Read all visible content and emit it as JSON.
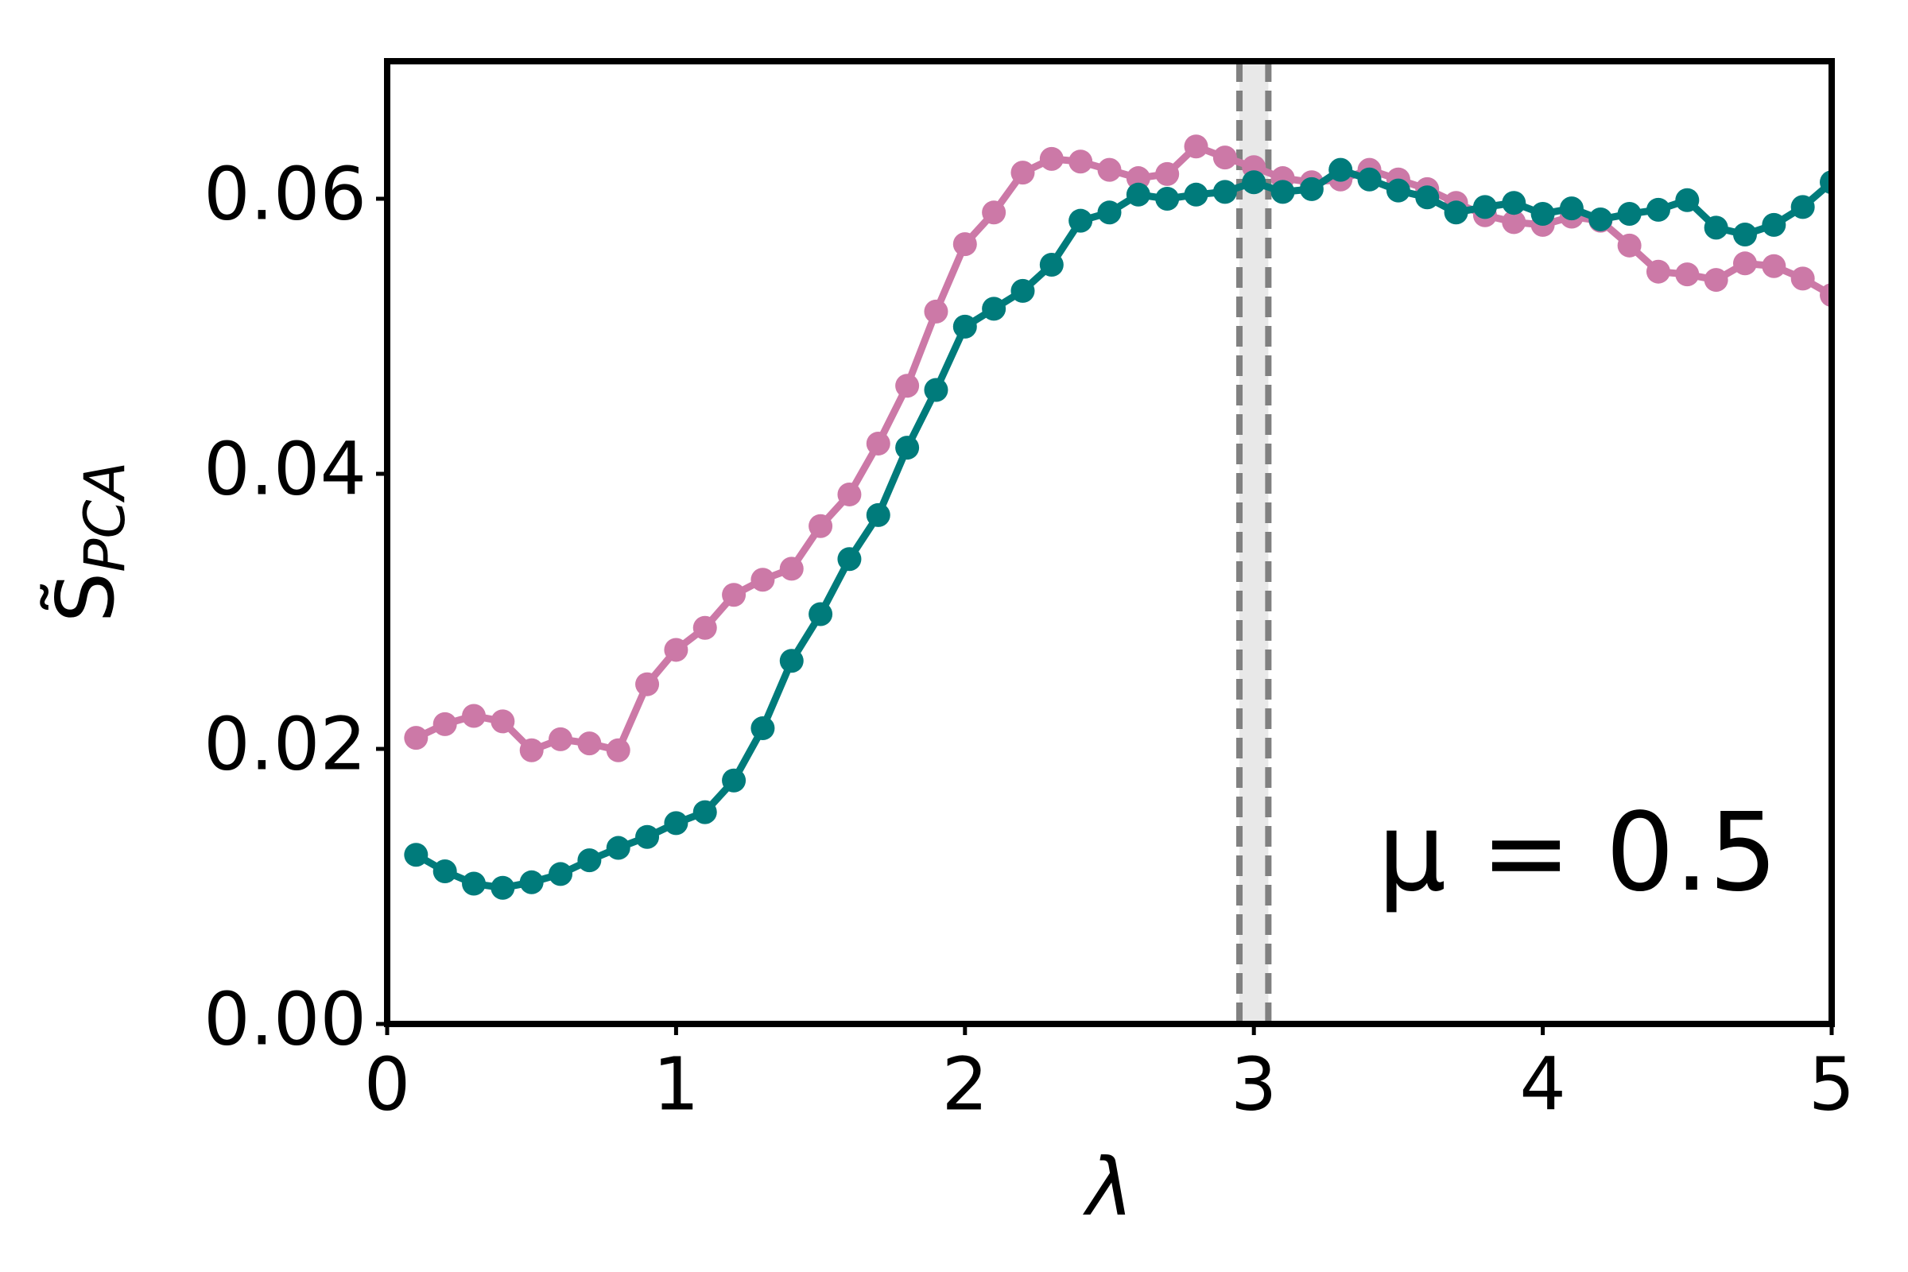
{
  "chart_data": {
    "type": "line",
    "xlabel": "λ",
    "ylabel_symbol": "S̃",
    "ylabel_subscript": "PCA",
    "annotation": "μ = 0.5",
    "x": [
      0.1,
      0.2,
      0.3,
      0.4,
      0.5,
      0.6,
      0.7,
      0.8,
      0.9,
      1.0,
      1.1,
      1.2,
      1.3,
      1.4,
      1.5,
      1.6,
      1.7,
      1.8,
      1.9,
      2.0,
      2.1,
      2.2,
      2.3,
      2.4,
      2.5,
      2.6,
      2.7,
      2.8,
      2.9,
      3.0,
      3.1,
      3.2,
      3.3,
      3.4,
      3.5,
      3.6,
      3.7,
      3.8,
      3.9,
      4.0,
      4.1,
      4.2,
      4.3,
      4.4,
      4.5,
      4.6,
      4.7,
      4.8,
      4.9,
      5.0
    ],
    "series": [
      {
        "color": "#cc79a7",
        "values": [
          0.0208,
          0.0218,
          0.0224,
          0.022,
          0.0199,
          0.0207,
          0.0204,
          0.0199,
          0.0247,
          0.0272,
          0.0288,
          0.0312,
          0.0323,
          0.0331,
          0.0362,
          0.0385,
          0.0422,
          0.0464,
          0.0518,
          0.0567,
          0.059,
          0.0619,
          0.0629,
          0.0627,
          0.0621,
          0.0615,
          0.0618,
          0.0638,
          0.063,
          0.0623,
          0.0615,
          0.0612,
          0.0614,
          0.0621,
          0.0614,
          0.0607,
          0.0597,
          0.0588,
          0.0583,
          0.0581,
          0.0587,
          0.0584,
          0.0566,
          0.0547,
          0.0545,
          0.0541,
          0.0553,
          0.0551,
          0.0542,
          0.053
        ]
      },
      {
        "color": "#007b7b",
        "values": [
          0.0123,
          0.0111,
          0.0102,
          0.0099,
          0.0103,
          0.0109,
          0.0119,
          0.0128,
          0.0136,
          0.0146,
          0.0154,
          0.0177,
          0.0215,
          0.0264,
          0.0298,
          0.0338,
          0.037,
          0.0419,
          0.0461,
          0.0507,
          0.052,
          0.0533,
          0.0552,
          0.0584,
          0.059,
          0.0603,
          0.06,
          0.0603,
          0.0605,
          0.0612,
          0.0605,
          0.0607,
          0.0621,
          0.0614,
          0.0606,
          0.0601,
          0.059,
          0.0594,
          0.0597,
          0.0589,
          0.0593,
          0.0585,
          0.0589,
          0.0592,
          0.0599,
          0.0579,
          0.0574,
          0.0581,
          0.0594,
          0.0612
        ]
      }
    ],
    "vspan": [
      2.95,
      3.05
    ],
    "vspan_color": "#e8e8e8",
    "vline_color": "#808080",
    "xlim": [
      0,
      5
    ],
    "xticks": [
      0,
      1,
      2,
      3,
      4,
      5
    ],
    "ylim": [
      0,
      0.07
    ],
    "yticks": [
      {
        "value": 0,
        "label": "0.00"
      },
      0.02,
      0.04,
      0.06
    ],
    "grid": false
  }
}
